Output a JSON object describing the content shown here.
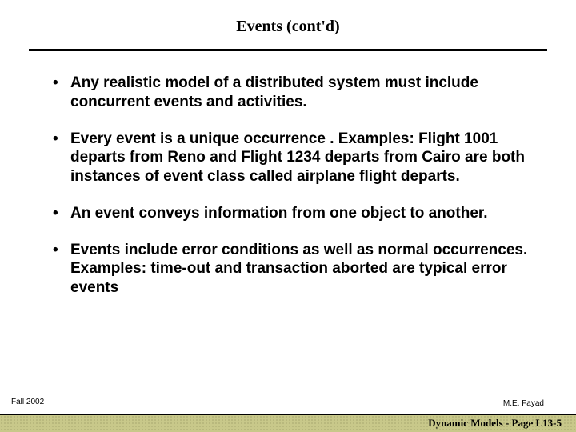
{
  "title": "Events (cont'd)",
  "bullets": [
    "Any realistic model of a distributed system must include concurrent events and activities.",
    "Every event is a unique occurrence .  Examples: Flight 1001 departs from Reno and Flight 1234 departs from Cairo  are both instances of event class called airplane flight departs.",
    "An event conveys information from one object to another.",
    "Events include error conditions as well as normal occurrences.  Examples: time-out and transaction aborted are typical error events"
  ],
  "footer": {
    "left": "Fall 2002",
    "right_top": "M.E. Fayad",
    "bar_text": "Dynamic Models  - Page L13-5"
  },
  "colors": {
    "text": "#000000",
    "background": "#ffffff",
    "bar_bg": "#c8c88a",
    "bar_dot": "#8a8a55"
  }
}
